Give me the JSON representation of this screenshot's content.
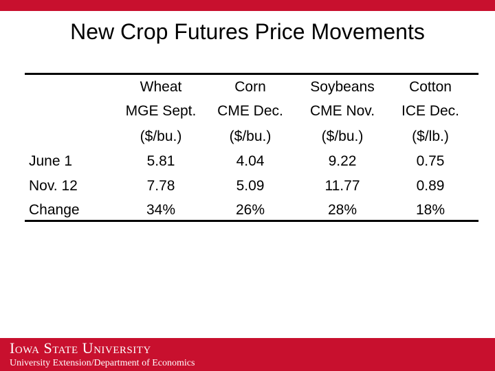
{
  "slide": {
    "title": "New Crop Futures Price Movements"
  },
  "table": {
    "columns": [
      {
        "commodity": "Wheat",
        "contract": "MGE Sept.",
        "unit": "($/bu.)"
      },
      {
        "commodity": "Corn",
        "contract": "CME Dec.",
        "unit": "($/bu.)"
      },
      {
        "commodity": "Soybeans",
        "contract": "CME Nov.",
        "unit": "($/bu.)"
      },
      {
        "commodity": "Cotton",
        "contract": "ICE Dec.",
        "unit": "($/lb.)"
      }
    ],
    "rows": [
      {
        "label": "June 1",
        "values": [
          "5.81",
          "4.04",
          "9.22",
          "0.75"
        ]
      },
      {
        "label": "Nov. 12",
        "values": [
          "7.78",
          "5.09",
          "11.77",
          "0.89"
        ]
      },
      {
        "label": "Change",
        "values": [
          "34%",
          "26%",
          "28%",
          "18%"
        ]
      }
    ]
  },
  "footer": {
    "logo_text": "Iowa State University",
    "subtitle": "University Extension/Department of Economics"
  },
  "colors": {
    "brand_red": "#c8102e"
  }
}
